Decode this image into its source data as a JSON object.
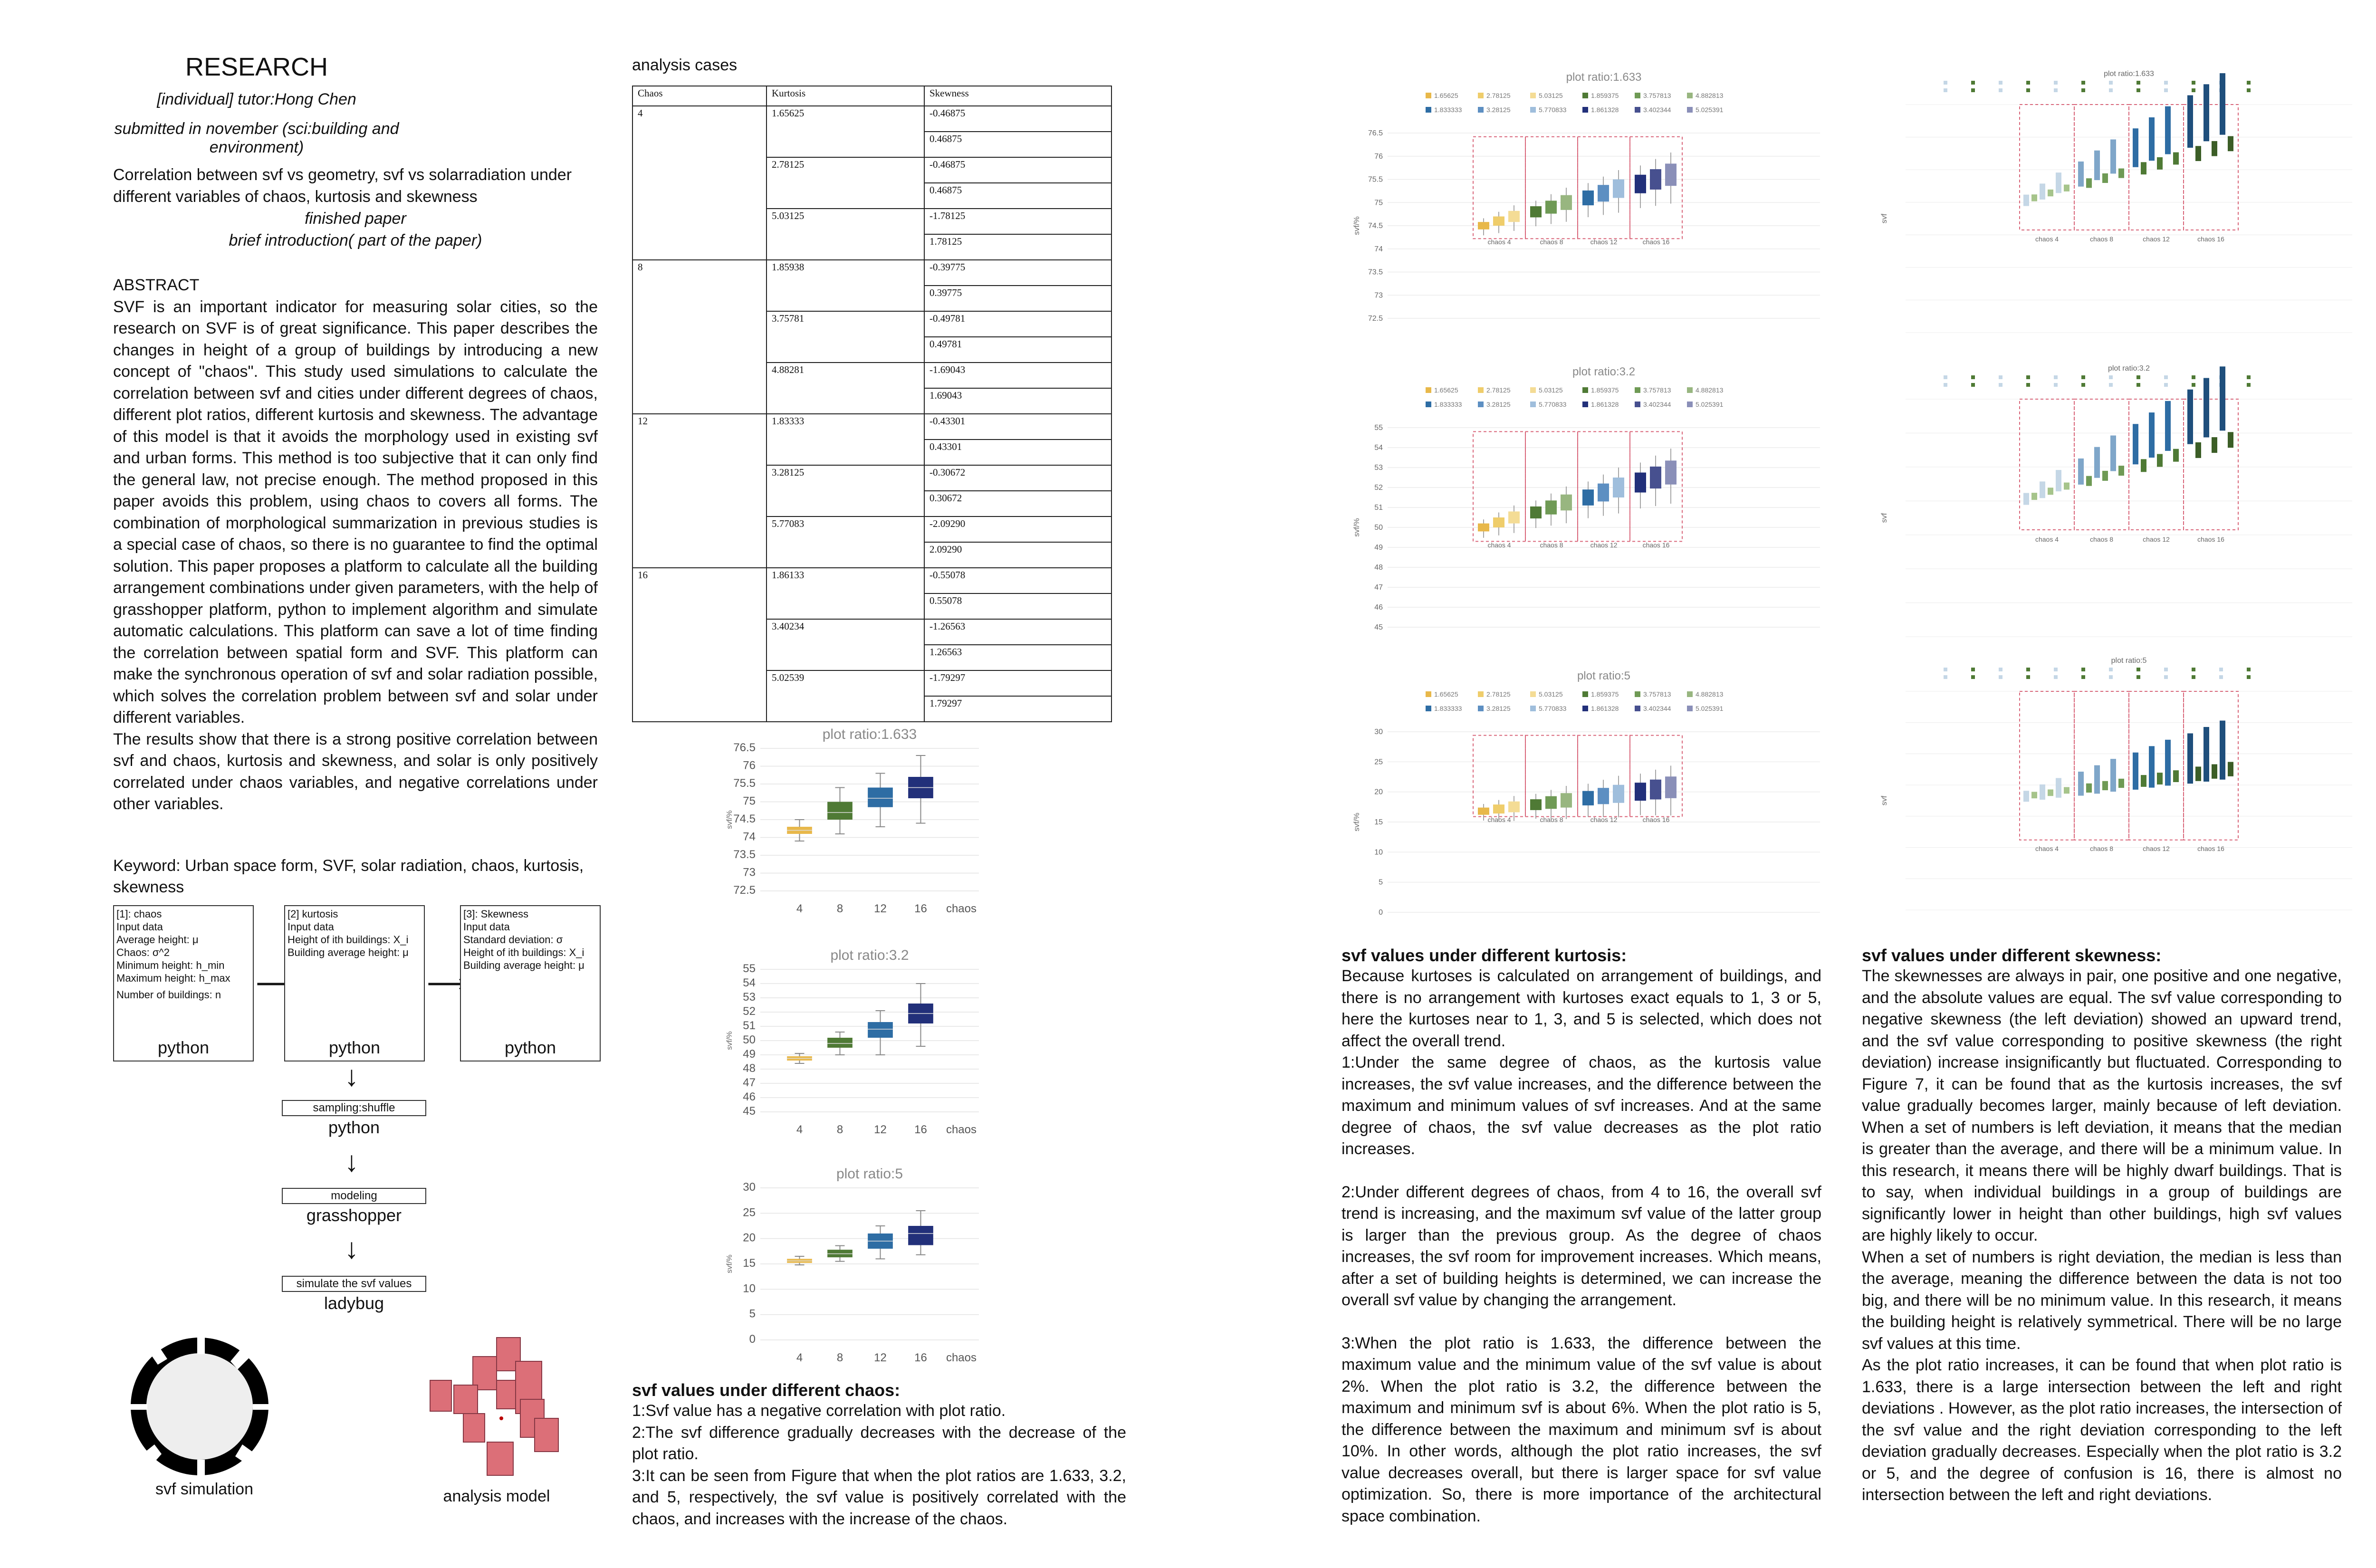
{
  "header": {
    "title": "RESEARCH",
    "subtitle1": "[individual] tutor:Hong Chen",
    "subtitle2": "submitted in november (sci:building and environment)"
  },
  "intro": {
    "line1": "Correlation between svf vs geometry, svf vs solarradiation under different variables of chaos, kurtosis and skewness",
    "line2": "finished paper",
    "line3": "brief introduction( part of the paper)"
  },
  "abstract": {
    "heading": "ABSTRACT",
    "p1": "SVF is an important indicator for measuring solar cities, so the research on SVF is of great significance. This paper describes the changes in height of a group of buildings by introducing a new concept of \"chaos\". This study used simulations to calculate the correlation between svf and cities under different degrees of chaos, different plot ratios, different kurtosis and skewness. The advantage of this model is that it avoids the morphology used in existing svf and urban forms. This method is too subjective that it can only find the general law, not precise enough. The method proposed in this paper avoids this problem, using chaos to covers all forms. The combination of morphological summarization in previous studies is a special case of chaos, so there is no guarantee to find the optimal solution. This paper proposes a platform to calculate all the building arrangement combinations under given parameters, with the help of grasshopper platform, python to implement algorithm and simulate automatic calculations. This platform can save a lot of time finding the correlation between spatial form and SVF. This platform can make the synchronous operation of svf and solar radiation possible, which solves the correlation problem between svf and solar under different variables.",
    "p2": "The results show that there is a strong positive correlation between svf and chaos, kurtosis and skewness, and solar is only positively correlated under chaos variables, and negative correlations under other variables.",
    "keyword": "Keyword: Urban space form, SVF, solar radiation, chaos, kurtosis, skewness"
  },
  "flow": {
    "box1": [
      "[1]: chaos",
      "Input data",
      "Average height: μ",
      "Chaos: σ^2",
      "Minimum height: h_min",
      "Maximum height: h_max",
      "Number of buildings: n"
    ],
    "box2": [
      "[2] kurtosis",
      "Input data",
      "Height of ith buildings: X_i",
      "Building average height: μ"
    ],
    "box3": [
      "[3]: Skewness",
      "Input data",
      "Standard deviation: σ",
      "Height of ith buildings: X_i",
      "Building average height: μ"
    ],
    "py": "python",
    "step1": "sampling:shuffle",
    "step1_tool": "python",
    "step2": "modeling",
    "step2_tool": "grasshopper",
    "step3": "simulate the svf values",
    "step3_tool": "ladybug"
  },
  "captions": {
    "svf_sim": "svf simulation",
    "analysis_model": "analysis model"
  },
  "table": {
    "heading": "analysis cases",
    "headers": [
      "Chaos",
      "Kurtosis",
      "Skewness"
    ],
    "groups": [
      {
        "chaos": "4",
        "rows": [
          [
            "1.65625",
            "-0.46875",
            "0.46875"
          ],
          [
            "2.78125",
            "-0.46875",
            "0.46875"
          ],
          [
            "5.03125",
            "-1.78125",
            "1.78125"
          ]
        ]
      },
      {
        "chaos": "8",
        "rows": [
          [
            "1.85938",
            "-0.39775",
            "0.39775"
          ],
          [
            "3.75781",
            "-0.49781",
            "0.49781"
          ],
          [
            "4.88281",
            "-1.69043",
            "1.69043"
          ]
        ]
      },
      {
        "chaos": "12",
        "rows": [
          [
            "1.83333",
            "-0.43301",
            "0.43301"
          ],
          [
            "3.28125",
            "-0.30672",
            "0.30672"
          ],
          [
            "5.77083",
            "-2.09290",
            "2.09290"
          ]
        ]
      },
      {
        "chaos": "16",
        "rows": [
          [
            "1.86133",
            "-0.55078",
            "0.55078"
          ],
          [
            "3.40234",
            "-1.26563",
            "1.26563"
          ],
          [
            "5.02539",
            "-1.79297",
            "1.79297"
          ]
        ]
      }
    ]
  },
  "colors": {
    "yellow": "#e8b84a",
    "green": "#4f7a35",
    "blue": "#2e6da4",
    "navy": "#22307a",
    "pink": "#d9667a"
  },
  "chart_data": [
    {
      "type": "box",
      "title": "plot ratio:1.633",
      "xlabel": "chaos",
      "ylabel": "svf/%",
      "categories": [
        "4",
        "8",
        "12",
        "16"
      ],
      "ylim": [
        72.5,
        76.5
      ],
      "yticks": [
        "76.5",
        "76",
        "75.5",
        "75",
        "74.5",
        "74",
        "73.5",
        "73",
        "72.5"
      ],
      "boxes": [
        {
          "q1": 74.1,
          "q3": 74.3,
          "min": 73.9,
          "max": 74.5,
          "mean": 74.2
        },
        {
          "q1": 74.5,
          "q3": 75.0,
          "min": 74.1,
          "max": 75.4,
          "mean": 74.7
        },
        {
          "q1": 74.85,
          "q3": 75.4,
          "min": 74.3,
          "max": 75.8,
          "mean": 75.1
        },
        {
          "q1": 75.1,
          "q3": 75.7,
          "min": 74.4,
          "max": 76.3,
          "mean": 75.4
        }
      ]
    },
    {
      "type": "box",
      "title": "plot ratio:3.2",
      "xlabel": "chaos",
      "ylabel": "svf/%",
      "categories": [
        "4",
        "8",
        "12",
        "16"
      ],
      "ylim": [
        45,
        55
      ],
      "yticks": [
        "55",
        "54",
        "53",
        "52",
        "51",
        "50",
        "49",
        "48",
        "47",
        "46",
        "45"
      ],
      "boxes": [
        {
          "q1": 48.6,
          "q3": 48.9,
          "min": 48.4,
          "max": 49.1,
          "mean": 48.75
        },
        {
          "q1": 49.5,
          "q3": 50.2,
          "min": 49.0,
          "max": 50.6,
          "mean": 49.8
        },
        {
          "q1": 50.2,
          "q3": 51.3,
          "min": 49.0,
          "max": 52.1,
          "mean": 50.8
        },
        {
          "q1": 51.2,
          "q3": 52.6,
          "min": 49.6,
          "max": 54.0,
          "mean": 51.9
        }
      ]
    },
    {
      "type": "box",
      "title": "plot ratio:5",
      "xlabel": "chaos",
      "ylabel": "svf/%",
      "categories": [
        "4",
        "8",
        "12",
        "16"
      ],
      "ylim": [
        0,
        30
      ],
      "yticks": [
        "30",
        "25",
        "20",
        "15",
        "10",
        "5",
        "0"
      ],
      "boxes": [
        {
          "q1": 15.2,
          "q3": 16.0,
          "min": 14.8,
          "max": 16.5,
          "mean": 15.6
        },
        {
          "q1": 16.3,
          "q3": 17.8,
          "min": 15.5,
          "max": 18.6,
          "mean": 17.0
        },
        {
          "q1": 18.0,
          "q3": 21.0,
          "min": 16.0,
          "max": 22.5,
          "mean": 19.5
        },
        {
          "q1": 18.7,
          "q3": 22.5,
          "min": 16.8,
          "max": 25.5,
          "mean": 21.0
        }
      ]
    },
    {
      "type": "box",
      "title": "plot ratio:1.633",
      "ylabel": "svf/%",
      "groups": [
        "chaos 4",
        "chaos 8",
        "chaos 12",
        "chaos 16"
      ],
      "yticks": [
        "76.5",
        "76",
        "75.5",
        "75",
        "74.5",
        "74",
        "73.5",
        "73",
        "72.5"
      ],
      "legend": [
        "1.65625",
        "2.78125",
        "5.03125",
        "1.859375",
        "3.757813",
        "4.882813",
        "1.833333",
        "3.28125",
        "5.770833",
        "1.861328",
        "3.402344",
        "5.025391"
      ]
    },
    {
      "type": "box",
      "title": "plot ratio:3.2",
      "ylabel": "svf/%",
      "groups": [
        "chaos 4",
        "chaos 8",
        "chaos 12",
        "chaos 16"
      ],
      "yticks": [
        "55",
        "54",
        "53",
        "52",
        "51",
        "50",
        "49",
        "48",
        "47",
        "46",
        "45"
      ],
      "legend": [
        "1.65625",
        "2.78125",
        "5.03125",
        "1.859375",
        "3.757813",
        "4.882813",
        "1.833333",
        "3.28125",
        "5.770833",
        "1.861328",
        "3.402344",
        "5.025391"
      ]
    },
    {
      "type": "box",
      "title": "plot ratio:5",
      "ylabel": "svf/%",
      "groups": [
        "chaos 4",
        "chaos 8",
        "chaos 12",
        "chaos 16"
      ],
      "yticks": [
        "30",
        "25",
        "20",
        "15",
        "10",
        "5",
        "0"
      ],
      "legend": [
        "1.65625",
        "2.78125",
        "5.03125",
        "1.859375",
        "3.757813",
        "4.882813",
        "1.833333",
        "3.28125",
        "5.770833",
        "1.861328",
        "3.402344",
        "5.025391"
      ]
    },
    {
      "type": "bar",
      "title": "plot ratio:1.633",
      "ylabel": "svf",
      "groups": [
        "chaos 4",
        "chaos 8",
        "chaos 12",
        "chaos 16"
      ]
    },
    {
      "type": "bar",
      "title": "plot ratio:3.2",
      "ylabel": "svf",
      "groups": [
        "chaos 4",
        "chaos 8",
        "chaos 12",
        "chaos 16"
      ]
    },
    {
      "type": "bar",
      "title": "plot ratio:5",
      "ylabel": "svf",
      "groups": [
        "chaos 4",
        "chaos 8",
        "chaos 12",
        "chaos 16"
      ]
    }
  ],
  "chaos_section": {
    "heading": "svf values under different chaos:",
    "items": [
      "1:Svf value has a negative correlation with plot ratio.",
      "2:The svf difference gradually decreases with the decrease of the plot ratio.",
      "3:It can be seen from Figure that when the plot ratios are 1.633, 3.2, and 5, respectively, the svf value is positively correlated with the chaos, and increases with the increase of the chaos."
    ]
  },
  "kurtosis_section": {
    "heading": "svf values under different kurtosis:",
    "p1": "Because kurtoses is calculated on arrangement of buildings, and there is no arrangement with kurtoses exact equals to 1, 3 or 5, here the kurtoses near to 1, 3, and 5 is selected, which does not affect the overall trend.",
    "p2": "1:Under the same degree of chaos, as the kurtosis value increases, the svf value increases, and the difference between the maximum and minimum values of svf increases. And at the same degree of chaos, the svf value decreases as the plot ratio increases.",
    "p3": "2:Under different degrees of chaos, from 4 to 16, the overall svf trend is increasing, and the maximum svf value of the latter group is larger than the previous group. As the degree of chaos increases, the svf room for improvement increases. Which means, after a set of building heights is determined, we can increase the overall svf value by changing the arrangement.",
    "p4": "3:When the plot ratio is 1.633, the difference between the maximum value and the minimum value of the svf value is about 2%. When the plot ratio is 3.2, the difference between the maximum and minimum svf is about 6%. When the plot ratio is 5, the difference between the maximum and minimum svf is about 10%. In other words, although the plot ratio increases, the svf value decreases overall, but there is larger space for svf value optimization. So, there is more importance of the architectural space combination."
  },
  "skewness_section": {
    "heading": "svf values under different skewness:",
    "p1": "The skewnesses are always in pair, one positive and one negative, and the absolute values are equal. The svf value corresponding to negative skewness (the left deviation) showed an upward trend, and the svf value corresponding to positive skewness (the right deviation) increase insignificantly but fluctuated. Corresponding to Figure 7, it can be found that as the kurtosis increases, the svf value gradually becomes larger, mainly because of left deviation. When a set of numbers is left deviation, it means that the median is greater than the average, and there will be a minimum value. In this research, it means there will be highly dwarf buildings. That is to say, when individual buildings in a group of buildings are significantly lower in height than other buildings, high svf values are highly likely to occur.",
    "p2": "When a set of numbers is right deviation, the median is less than the average, meaning the difference between the data is not too big, and there will be no minimum value. In this research, it means the building height is relatively symmetrical. There will be no large svf values at this time.",
    "p3": "As the plot ratio increases, it can be found that when plot ratio is 1.633, there is a large intersection between the left and right deviations . However, as the plot ratio increases, the intersection of the svf value and the right deviation corresponding to the left deviation gradually decreases. Especially when the plot ratio is 3.2 or 5, and the degree of confusion is 16, there is almost no intersection between the left and right deviations."
  }
}
